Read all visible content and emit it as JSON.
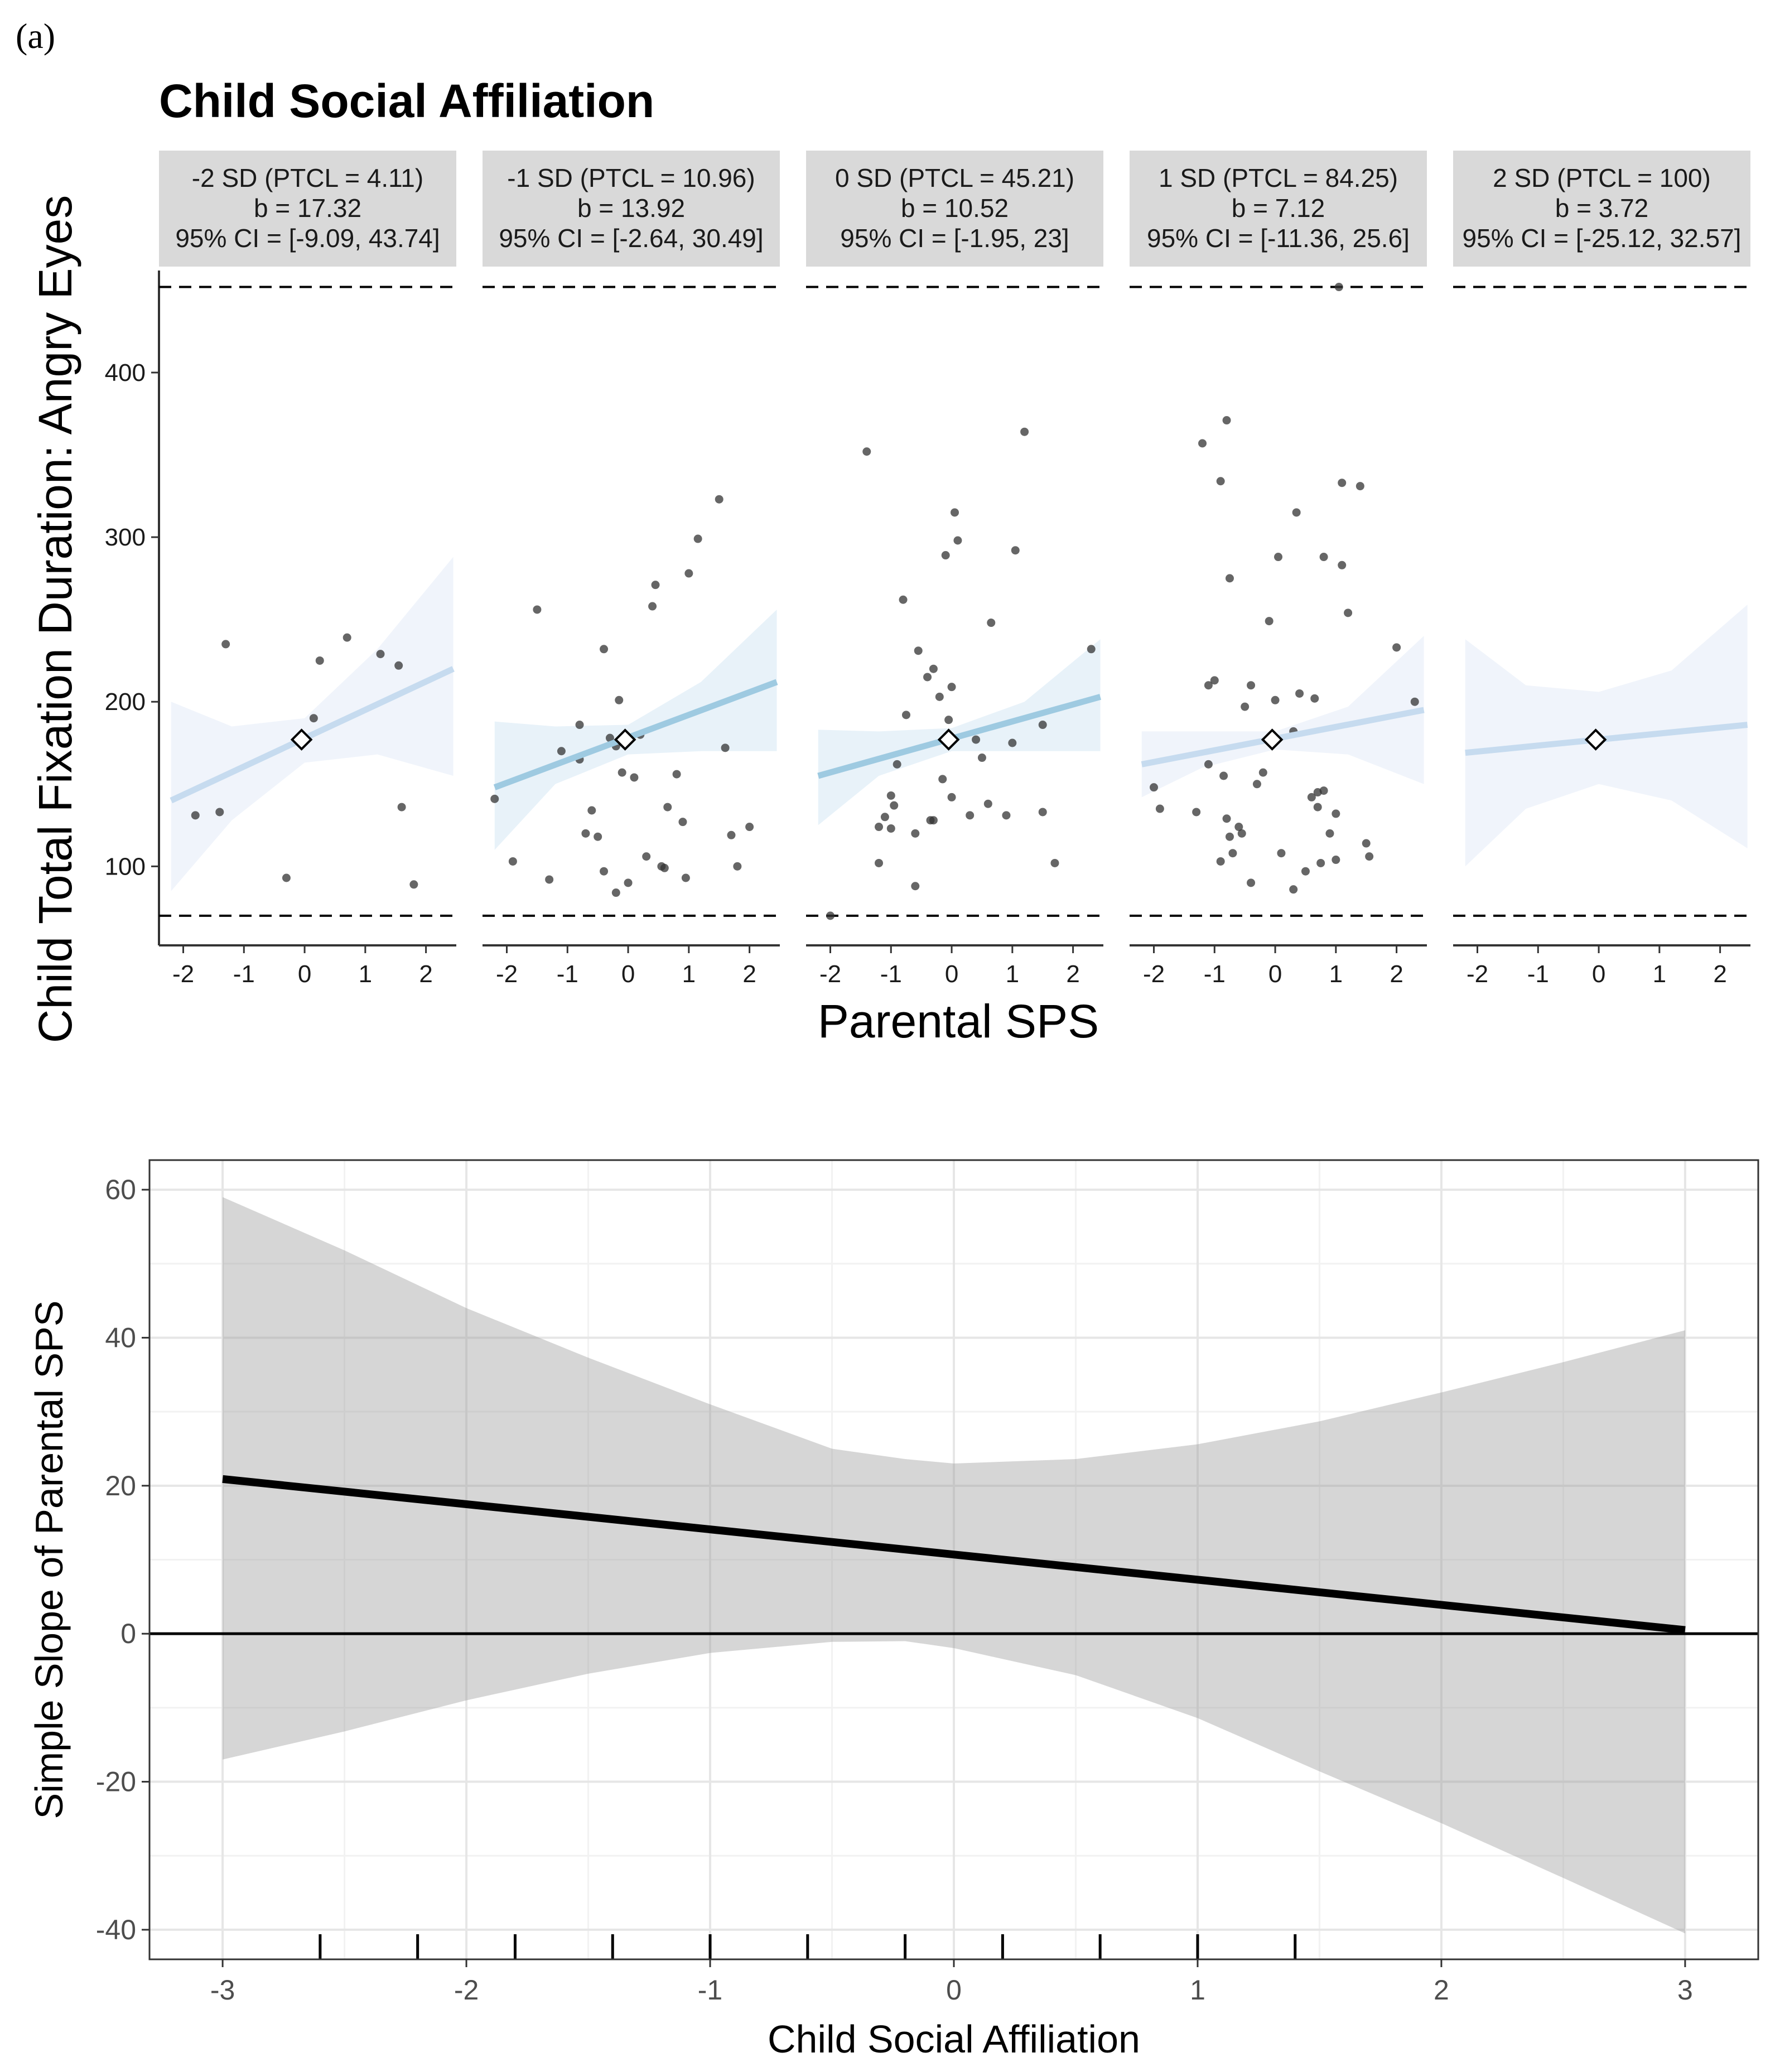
{
  "figure": {
    "panel_label": "(a)"
  },
  "chart_data": [
    {
      "type": "scatter",
      "title": "Child Social Affiliation",
      "xlabel": "Parental SPS",
      "ylabel": "Child Total Fixation Duration: Angry Eyes",
      "xlim": [
        -2.4,
        2.5
      ],
      "ylim": [
        52,
        462
      ],
      "x_ticks": [
        -2,
        -1,
        0,
        1,
        2
      ],
      "y_ticks": [
        100,
        200,
        300,
        400
      ],
      "reference_lines": [
        70,
        452
      ],
      "facets": [
        {
          "strip": [
            "-2 SD (PTCL = 4.11)",
            "b = 17.32",
            "95% CI = [-9.09, 43.74]"
          ],
          "line": {
            "x": [
              -2.2,
              2.45
            ],
            "y": [
              140,
              220
            ]
          },
          "band": {
            "x": [
              -2.2,
              -1.2,
              0,
              1.2,
              2.45
            ],
            "lower": [
              85,
              128,
              163,
              168,
              155
            ],
            "upper": [
              200,
              185,
              190,
              232,
              288
            ]
          },
          "line_color": "#c6dbef",
          "band_color": "#eef3fb",
          "marker": {
            "x": -0.05,
            "y": 177
          },
          "points": [
            [
              -1.8,
              131
            ],
            [
              -1.4,
              133
            ],
            [
              -1.3,
              235
            ],
            [
              -0.3,
              93
            ],
            [
              0.15,
              190
            ],
            [
              0.25,
              225
            ],
            [
              0.7,
              239
            ],
            [
              1.25,
              229
            ],
            [
              1.55,
              222
            ],
            [
              1.6,
              136
            ],
            [
              1.8,
              89
            ]
          ]
        },
        {
          "strip": [
            "-1 SD (PTCL = 10.96)",
            "b = 13.92",
            "95% CI = [-2.64, 30.49]"
          ],
          "line": {
            "x": [
              -2.2,
              2.45
            ],
            "y": [
              148,
              212
            ]
          },
          "band": {
            "x": [
              -2.2,
              -1.2,
              0,
              1.2,
              2.45
            ],
            "lower": [
              110,
              150,
              168,
              170,
              170
            ],
            "upper": [
              188,
              185,
              186,
              212,
              256
            ]
          },
          "line_color": "#9ecae1",
          "band_color": "#e6f1f8",
          "marker": {
            "x": -0.05,
            "y": 177
          },
          "points": [
            [
              -2.2,
              141
            ],
            [
              -1.5,
              256
            ],
            [
              -1.3,
              92
            ],
            [
              -1.1,
              170
            ],
            [
              -0.8,
              165
            ],
            [
              -0.8,
              186
            ],
            [
              -0.7,
              120
            ],
            [
              -0.6,
              134
            ],
            [
              -0.5,
              118
            ],
            [
              -0.4,
              232
            ],
            [
              -0.4,
              97
            ],
            [
              -0.3,
              178
            ],
            [
              -0.2,
              173
            ],
            [
              -0.2,
              84
            ],
            [
              -0.15,
              201
            ],
            [
              -0.1,
              157
            ],
            [
              0,
              90
            ],
            [
              0.1,
              154
            ],
            [
              0.2,
              180
            ],
            [
              0.3,
              106
            ],
            [
              0.4,
              258
            ],
            [
              0.45,
              271
            ],
            [
              0.55,
              100
            ],
            [
              0.6,
              99
            ],
            [
              0.65,
              136
            ],
            [
              0.8,
              156
            ],
            [
              0.9,
              127
            ],
            [
              0.95,
              93
            ],
            [
              1.0,
              278
            ],
            [
              1.15,
              299
            ],
            [
              1.5,
              323
            ],
            [
              1.6,
              172
            ],
            [
              1.7,
              119
            ],
            [
              1.8,
              100
            ],
            [
              2.0,
              124
            ],
            [
              -1.9,
              103
            ]
          ]
        },
        {
          "strip": [
            "0 SD (PTCL = 45.21)",
            "b = 10.52",
            "95% CI = [-1.95, 23]"
          ],
          "line": {
            "x": [
              -2.2,
              2.45
            ],
            "y": [
              155,
              203
            ]
          },
          "band": {
            "x": [
              -2.2,
              -1.2,
              0,
              1.2,
              2.45
            ],
            "lower": [
              125,
              155,
              170,
              170,
              170
            ],
            "upper": [
              183,
              182,
              184,
              200,
              238
            ]
          },
          "line_color": "#9ecae1",
          "band_color": "#e6f1f8",
          "marker": {
            "x": -0.05,
            "y": 177
          },
          "points": [
            [
              -2.0,
              70
            ],
            [
              -1.4,
              352
            ],
            [
              -1.2,
              124
            ],
            [
              -1.2,
              102
            ],
            [
              -1.1,
              130
            ],
            [
              -1.0,
              123
            ],
            [
              -1.0,
              143
            ],
            [
              -0.95,
              137
            ],
            [
              -0.9,
              162
            ],
            [
              -0.8,
              262
            ],
            [
              -0.75,
              192
            ],
            [
              -0.6,
              120
            ],
            [
              -0.55,
              231
            ],
            [
              -0.4,
              215
            ],
            [
              -0.35,
              128
            ],
            [
              -0.3,
              128
            ],
            [
              -0.3,
              220
            ],
            [
              -0.2,
              203
            ],
            [
              -0.15,
              153
            ],
            [
              -0.1,
              289
            ],
            [
              -0.05,
              189
            ],
            [
              0,
              209
            ],
            [
              0,
              142
            ],
            [
              0.05,
              315
            ],
            [
              0.1,
              298
            ],
            [
              0.3,
              131
            ],
            [
              0.4,
              177
            ],
            [
              0.5,
              166
            ],
            [
              0.6,
              138
            ],
            [
              0.65,
              248
            ],
            [
              0.9,
              131
            ],
            [
              1.0,
              175
            ],
            [
              1.05,
              292
            ],
            [
              1.2,
              364
            ],
            [
              1.5,
              186
            ],
            [
              1.5,
              133
            ],
            [
              1.7,
              102
            ],
            [
              2.3,
              232
            ],
            [
              -0.6,
              88
            ]
          ]
        },
        {
          "strip": [
            "1 SD (PTCL = 84.25)",
            "b = 7.12",
            "95% CI = [-11.36, 25.6]"
          ],
          "line": {
            "x": [
              -2.2,
              2.45
            ],
            "y": [
              162,
              195
            ]
          },
          "band": {
            "x": [
              -2.2,
              -1.2,
              0,
              1.2,
              2.45
            ],
            "lower": [
              142,
              160,
              171,
              168,
              150
            ],
            "upper": [
              182,
              182,
              182,
              197,
              240
            ]
          },
          "line_color": "#c6dbef",
          "band_color": "#eef3fb",
          "marker": {
            "x": -0.05,
            "y": 177
          },
          "points": [
            [
              -2.0,
              148
            ],
            [
              -1.9,
              135
            ],
            [
              -1.3,
              133
            ],
            [
              -1.2,
              357
            ],
            [
              -1.1,
              162
            ],
            [
              -1.1,
              210
            ],
            [
              -1.0,
              213
            ],
            [
              -0.9,
              103
            ],
            [
              -0.9,
              334
            ],
            [
              -0.85,
              155
            ],
            [
              -0.8,
              371
            ],
            [
              -0.8,
              129
            ],
            [
              -0.75,
              275
            ],
            [
              -0.7,
              108
            ],
            [
              -0.6,
              124
            ],
            [
              -0.5,
              197
            ],
            [
              -0.4,
              210
            ],
            [
              -0.4,
              90
            ],
            [
              -0.3,
              150
            ],
            [
              -0.2,
              157
            ],
            [
              -0.1,
              249
            ],
            [
              0,
              201
            ],
            [
              0.05,
              288
            ],
            [
              0.1,
              108
            ],
            [
              0.3,
              86
            ],
            [
              0.3,
              182
            ],
            [
              0.35,
              315
            ],
            [
              0.4,
              205
            ],
            [
              0.5,
              97
            ],
            [
              0.6,
              142
            ],
            [
              0.65,
              202
            ],
            [
              0.7,
              136
            ],
            [
              0.7,
              145
            ],
            [
              0.75,
              102
            ],
            [
              0.8,
              288
            ],
            [
              0.8,
              146
            ],
            [
              0.9,
              120
            ],
            [
              1.0,
              104
            ],
            [
              1.0,
              132
            ],
            [
              1.05,
              452
            ],
            [
              1.1,
              333
            ],
            [
              1.1,
              283
            ],
            [
              1.2,
              254
            ],
            [
              1.4,
              331
            ],
            [
              1.5,
              114
            ],
            [
              1.55,
              106
            ],
            [
              2.0,
              233
            ],
            [
              2.3,
              200
            ],
            [
              -0.75,
              118
            ],
            [
              -0.55,
              120
            ]
          ]
        },
        {
          "strip": [
            "2 SD (PTCL = 100)",
            "b = 3.72",
            "95% CI = [-25.12, 32.57]"
          ],
          "line": {
            "x": [
              -2.2,
              2.45
            ],
            "y": [
              169,
              186
            ]
          },
          "band": {
            "x": [
              -2.2,
              -1.2,
              0,
              1.2,
              2.45
            ],
            "lower": [
              100,
              135,
              150,
              140,
              111
            ],
            "upper": [
              238,
              210,
              206,
              219,
              259
            ]
          },
          "line_color": "#c6dbef",
          "band_color": "#eef3fb",
          "marker": {
            "x": -0.05,
            "y": 177
          },
          "points": []
        }
      ]
    },
    {
      "type": "line",
      "title": "",
      "xlabel": "Child Social Affiliation",
      "ylabel": "Simple Slope of Parental SPS",
      "xlim": [
        -3.3,
        3.3
      ],
      "ylim": [
        -44,
        64
      ],
      "x_ticks": [
        -3,
        -2,
        -1,
        0,
        1,
        2,
        3
      ],
      "y_ticks": [
        -40,
        -20,
        0,
        20,
        40,
        60
      ],
      "grid": true,
      "series": [
        {
          "name": "simple slope",
          "x": [
            -3,
            3
          ],
          "y": [
            20.9,
            0.5
          ]
        }
      ],
      "ribbon": {
        "x": [
          -3,
          -2.5,
          -2,
          -1.5,
          -1,
          -0.5,
          -0.2,
          0,
          0.5,
          1,
          1.5,
          2,
          2.5,
          3
        ],
        "lower": [
          -17,
          -13.2,
          -9,
          -5.4,
          -2.6,
          -1.1,
          -1.0,
          -1.95,
          -5.6,
          -11.4,
          -18.6,
          -25.6,
          -33,
          -40.5
        ],
        "upper": [
          59,
          51.8,
          44,
          37.3,
          31,
          25,
          23.6,
          23,
          23.6,
          25.6,
          28.7,
          32.6,
          36.7,
          41
        ]
      },
      "hline": 0,
      "rug": [
        -2.6,
        -2.2,
        -1.8,
        -1.4,
        -1.0,
        -0.6,
        -0.2,
        0.2,
        0.6,
        1.0,
        1.4
      ]
    }
  ]
}
